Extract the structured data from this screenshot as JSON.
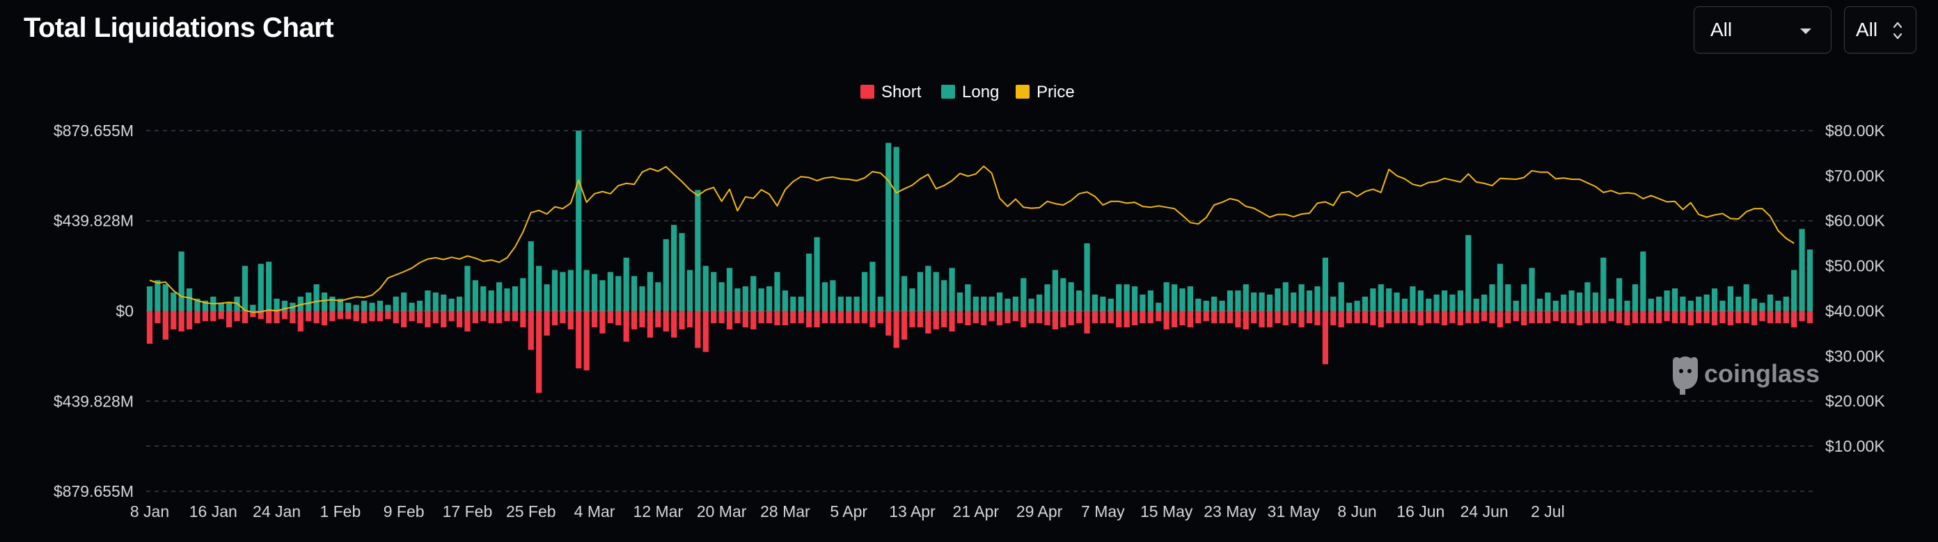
{
  "header": {
    "title": "Total Liquidations Chart",
    "range_select": "All",
    "period_select": "All"
  },
  "watermark": {
    "text": "coinglass",
    "icon": "coinglass-logo-icon"
  },
  "colors": {
    "short": "#f23645",
    "long": "#1fa58e",
    "price": "#f0b90b",
    "grid": "#3b3f48",
    "axis_text": "#d6d6d6",
    "background": "#05060a"
  },
  "chart_data": {
    "type": "bar",
    "legend": [
      {
        "name": "Short",
        "color": "#f23645"
      },
      {
        "name": "Long",
        "color": "#1fa58e"
      },
      {
        "name": "Price",
        "color": "#f0b90b"
      }
    ],
    "legend_position": "top-center",
    "grid": true,
    "x_start": "8 Jan",
    "x_tick_labels": [
      "8 Jan",
      "16 Jan",
      "24 Jan",
      "1 Feb",
      "9 Feb",
      "17 Feb",
      "25 Feb",
      "4 Mar",
      "12 Mar",
      "20 Mar",
      "28 Mar",
      "5 Apr",
      "13 Apr",
      "21 Apr",
      "29 Apr",
      "7 May",
      "15 May",
      "23 May",
      "31 May",
      "8 Jun",
      "16 Jun",
      "24 Jun",
      "2 Jul"
    ],
    "y_left_tick_labels": [
      "$879.655M",
      "$439.828M",
      "$0",
      "$439.828M",
      "$879.655M"
    ],
    "y_left_ticks": [
      879.655,
      439.828,
      0,
      -439.828,
      -879.655
    ],
    "ylim_left": [
      -879.655,
      879.655
    ],
    "y_right_tick_labels": [
      "$80.00K",
      "$70.00K",
      "$60.00K",
      "$50.00K",
      "$40.00K",
      "$30.00K",
      "$20.00K",
      "$10.00K"
    ],
    "y_right_ticks": [
      80000,
      70000,
      60000,
      50000,
      40000,
      30000,
      20000,
      10000
    ],
    "ylim_right": [
      0,
      80000
    ],
    "series": [
      {
        "name": "Long",
        "values": [
          120,
          150,
          130,
          90,
          290,
          110,
          60,
          50,
          70,
          40,
          40,
          70,
          220,
          30,
          230,
          240,
          60,
          50,
          40,
          70,
          90,
          130,
          90,
          70,
          60,
          40,
          30,
          50,
          40,
          50,
          30,
          70,
          90,
          40,
          50,
          100,
          90,
          80,
          60,
          70,
          220,
          150,
          120,
          100,
          140,
          110,
          120,
          160,
          340,
          220,
          130,
          200,
          190,
          200,
          880,
          200,
          180,
          150,
          190,
          170,
          260,
          170,
          120,
          190,
          140,
          350,
          420,
          380,
          200,
          590,
          220,
          190,
          140,
          210,
          110,
          120,
          170,
          110,
          120,
          190,
          100,
          70,
          70,
          280,
          360,
          140,
          150,
          70,
          70,
          70,
          190,
          240,
          70,
          820,
          800,
          170,
          110,
          190,
          220,
          190,
          150,
          210,
          90,
          130,
          70,
          70,
          70,
          90,
          60,
          70,
          160,
          60,
          80,
          130,
          200,
          160,
          140,
          100,
          330,
          80,
          70,
          60,
          130,
          130,
          120,
          80,
          100,
          40,
          140,
          130,
          110,
          120,
          60,
          50,
          70,
          50,
          100,
          100,
          130,
          90,
          90,
          80,
          110,
          140,
          90,
          130,
          100,
          120,
          260,
          70,
          140,
          40,
          50,
          70,
          110,
          130,
          110,
          90,
          60,
          120,
          100,
          60,
          80,
          100,
          80,
          100,
          370,
          60,
          80,
          130,
          230,
          130,
          50,
          130,
          210,
          60,
          90,
          50,
          80,
          100,
          90,
          140,
          90,
          260,
          60,
          160,
          50,
          130,
          290,
          60,
          70,
          100,
          110,
          70,
          50,
          70,
          80,
          110,
          50,
          120,
          70,
          130,
          60,
          40,
          80,
          50,
          70,
          200,
          400,
          300
        ]
      },
      {
        "name": "Short",
        "values": [
          -160,
          -60,
          -140,
          -90,
          -100,
          -90,
          -60,
          -50,
          -50,
          -40,
          -80,
          -50,
          -60,
          -30,
          -40,
          -60,
          -60,
          -40,
          -60,
          -100,
          -50,
          -60,
          -70,
          -50,
          -40,
          -40,
          -50,
          -60,
          -50,
          -50,
          -40,
          -60,
          -80,
          -50,
          -60,
          -80,
          -60,
          -80,
          -50,
          -80,
          -100,
          -60,
          -50,
          -60,
          -60,
          -50,
          -50,
          -80,
          -190,
          -400,
          -120,
          -70,
          -60,
          -90,
          -280,
          -290,
          -80,
          -110,
          -60,
          -70,
          -150,
          -90,
          -80,
          -130,
          -80,
          -100,
          -130,
          -90,
          -80,
          -180,
          -200,
          -60,
          -60,
          -90,
          -60,
          -80,
          -90,
          -60,
          -60,
          -70,
          -70,
          -60,
          -60,
          -80,
          -80,
          -60,
          -60,
          -60,
          -60,
          -60,
          -60,
          -80,
          -60,
          -120,
          -180,
          -140,
          -80,
          -80,
          -110,
          -90,
          -80,
          -100,
          -60,
          -70,
          -60,
          -70,
          -50,
          -70,
          -60,
          -50,
          -80,
          -60,
          -60,
          -70,
          -90,
          -80,
          -70,
          -60,
          -110,
          -60,
          -60,
          -60,
          -80,
          -80,
          -70,
          -60,
          -60,
          -50,
          -90,
          -80,
          -70,
          -80,
          -60,
          -50,
          -60,
          -60,
          -60,
          -80,
          -90,
          -60,
          -80,
          -80,
          -60,
          -70,
          -60,
          -80,
          -60,
          -70,
          -260,
          -70,
          -80,
          -60,
          -60,
          -60,
          -70,
          -80,
          -60,
          -60,
          -60,
          -60,
          -70,
          -60,
          -60,
          -70,
          -60,
          -70,
          -60,
          -60,
          -50,
          -60,
          -80,
          -60,
          -50,
          -70,
          -60,
          -60,
          -60,
          -50,
          -60,
          -60,
          -70,
          -60,
          -60,
          -60,
          -50,
          -60,
          -70,
          -60,
          -60,
          -60,
          -60,
          -50,
          -60,
          -60,
          -70,
          -60,
          -60,
          -70,
          -60,
          -70,
          -60,
          -60,
          -70,
          -50,
          -60,
          -60,
          -60,
          -80,
          -50,
          -60
        ]
      },
      {
        "name": "Price",
        "values": [
          46800,
          46200,
          46400,
          44500,
          43200,
          42900,
          42300,
          41800,
          41600,
          41700,
          41900,
          41700,
          40100,
          39700,
          39800,
          40200,
          40000,
          40500,
          40800,
          41400,
          41700,
          42100,
          42300,
          42500,
          42200,
          42700,
          43100,
          43000,
          43500,
          45000,
          47300,
          48000,
          48700,
          49500,
          50700,
          51500,
          51800,
          51400,
          51900,
          51500,
          52200,
          51700,
          51000,
          51300,
          50800,
          51800,
          54200,
          57500,
          61800,
          62300,
          61500,
          63100,
          62700,
          63900,
          69000,
          64100,
          66000,
          66500,
          66000,
          67800,
          68300,
          68100,
          70800,
          71600,
          71000,
          72000,
          70300,
          68700,
          66900,
          65600,
          66800,
          67400,
          64300,
          67000,
          62200,
          65300,
          65000,
          66900,
          65900,
          63300,
          66900,
          68700,
          69800,
          69600,
          68900,
          69500,
          69700,
          69300,
          69200,
          68900,
          69500,
          70900,
          70600,
          68900,
          66200,
          67100,
          67900,
          69300,
          70300,
          67100,
          67800,
          68900,
          70500,
          69900,
          70400,
          72100,
          70600,
          65000,
          63200,
          64800,
          63000,
          62800,
          62900,
          64300,
          63800,
          63500,
          64500,
          66000,
          66400,
          65400,
          63500,
          64300,
          64300,
          63900,
          64100,
          63200,
          63000,
          63300,
          63000,
          62700,
          61200,
          59600,
          59300,
          60700,
          63500,
          64100,
          64900,
          64500,
          63200,
          62800,
          61800,
          60800,
          61400,
          61400,
          60900,
          61500,
          61700,
          63900,
          64200,
          63400,
          66200,
          66500,
          65400,
          66500,
          67000,
          66300,
          71400,
          70000,
          69300,
          68100,
          67700,
          68500,
          68700,
          69400,
          69000,
          68600,
          70400,
          68600,
          68300,
          67800,
          69400,
          69300,
          69200,
          69600,
          71100,
          70800,
          70800,
          69300,
          69500,
          69200,
          69200,
          68400,
          67600,
          66300,
          66700,
          66000,
          66200,
          66000,
          64900,
          65600,
          64900,
          64200,
          64300,
          62500,
          64000,
          61400,
          60800,
          61300,
          61600,
          60500,
          60400,
          62000,
          62700,
          62700,
          61000,
          57800,
          56100,
          55000
        ]
      }
    ]
  }
}
